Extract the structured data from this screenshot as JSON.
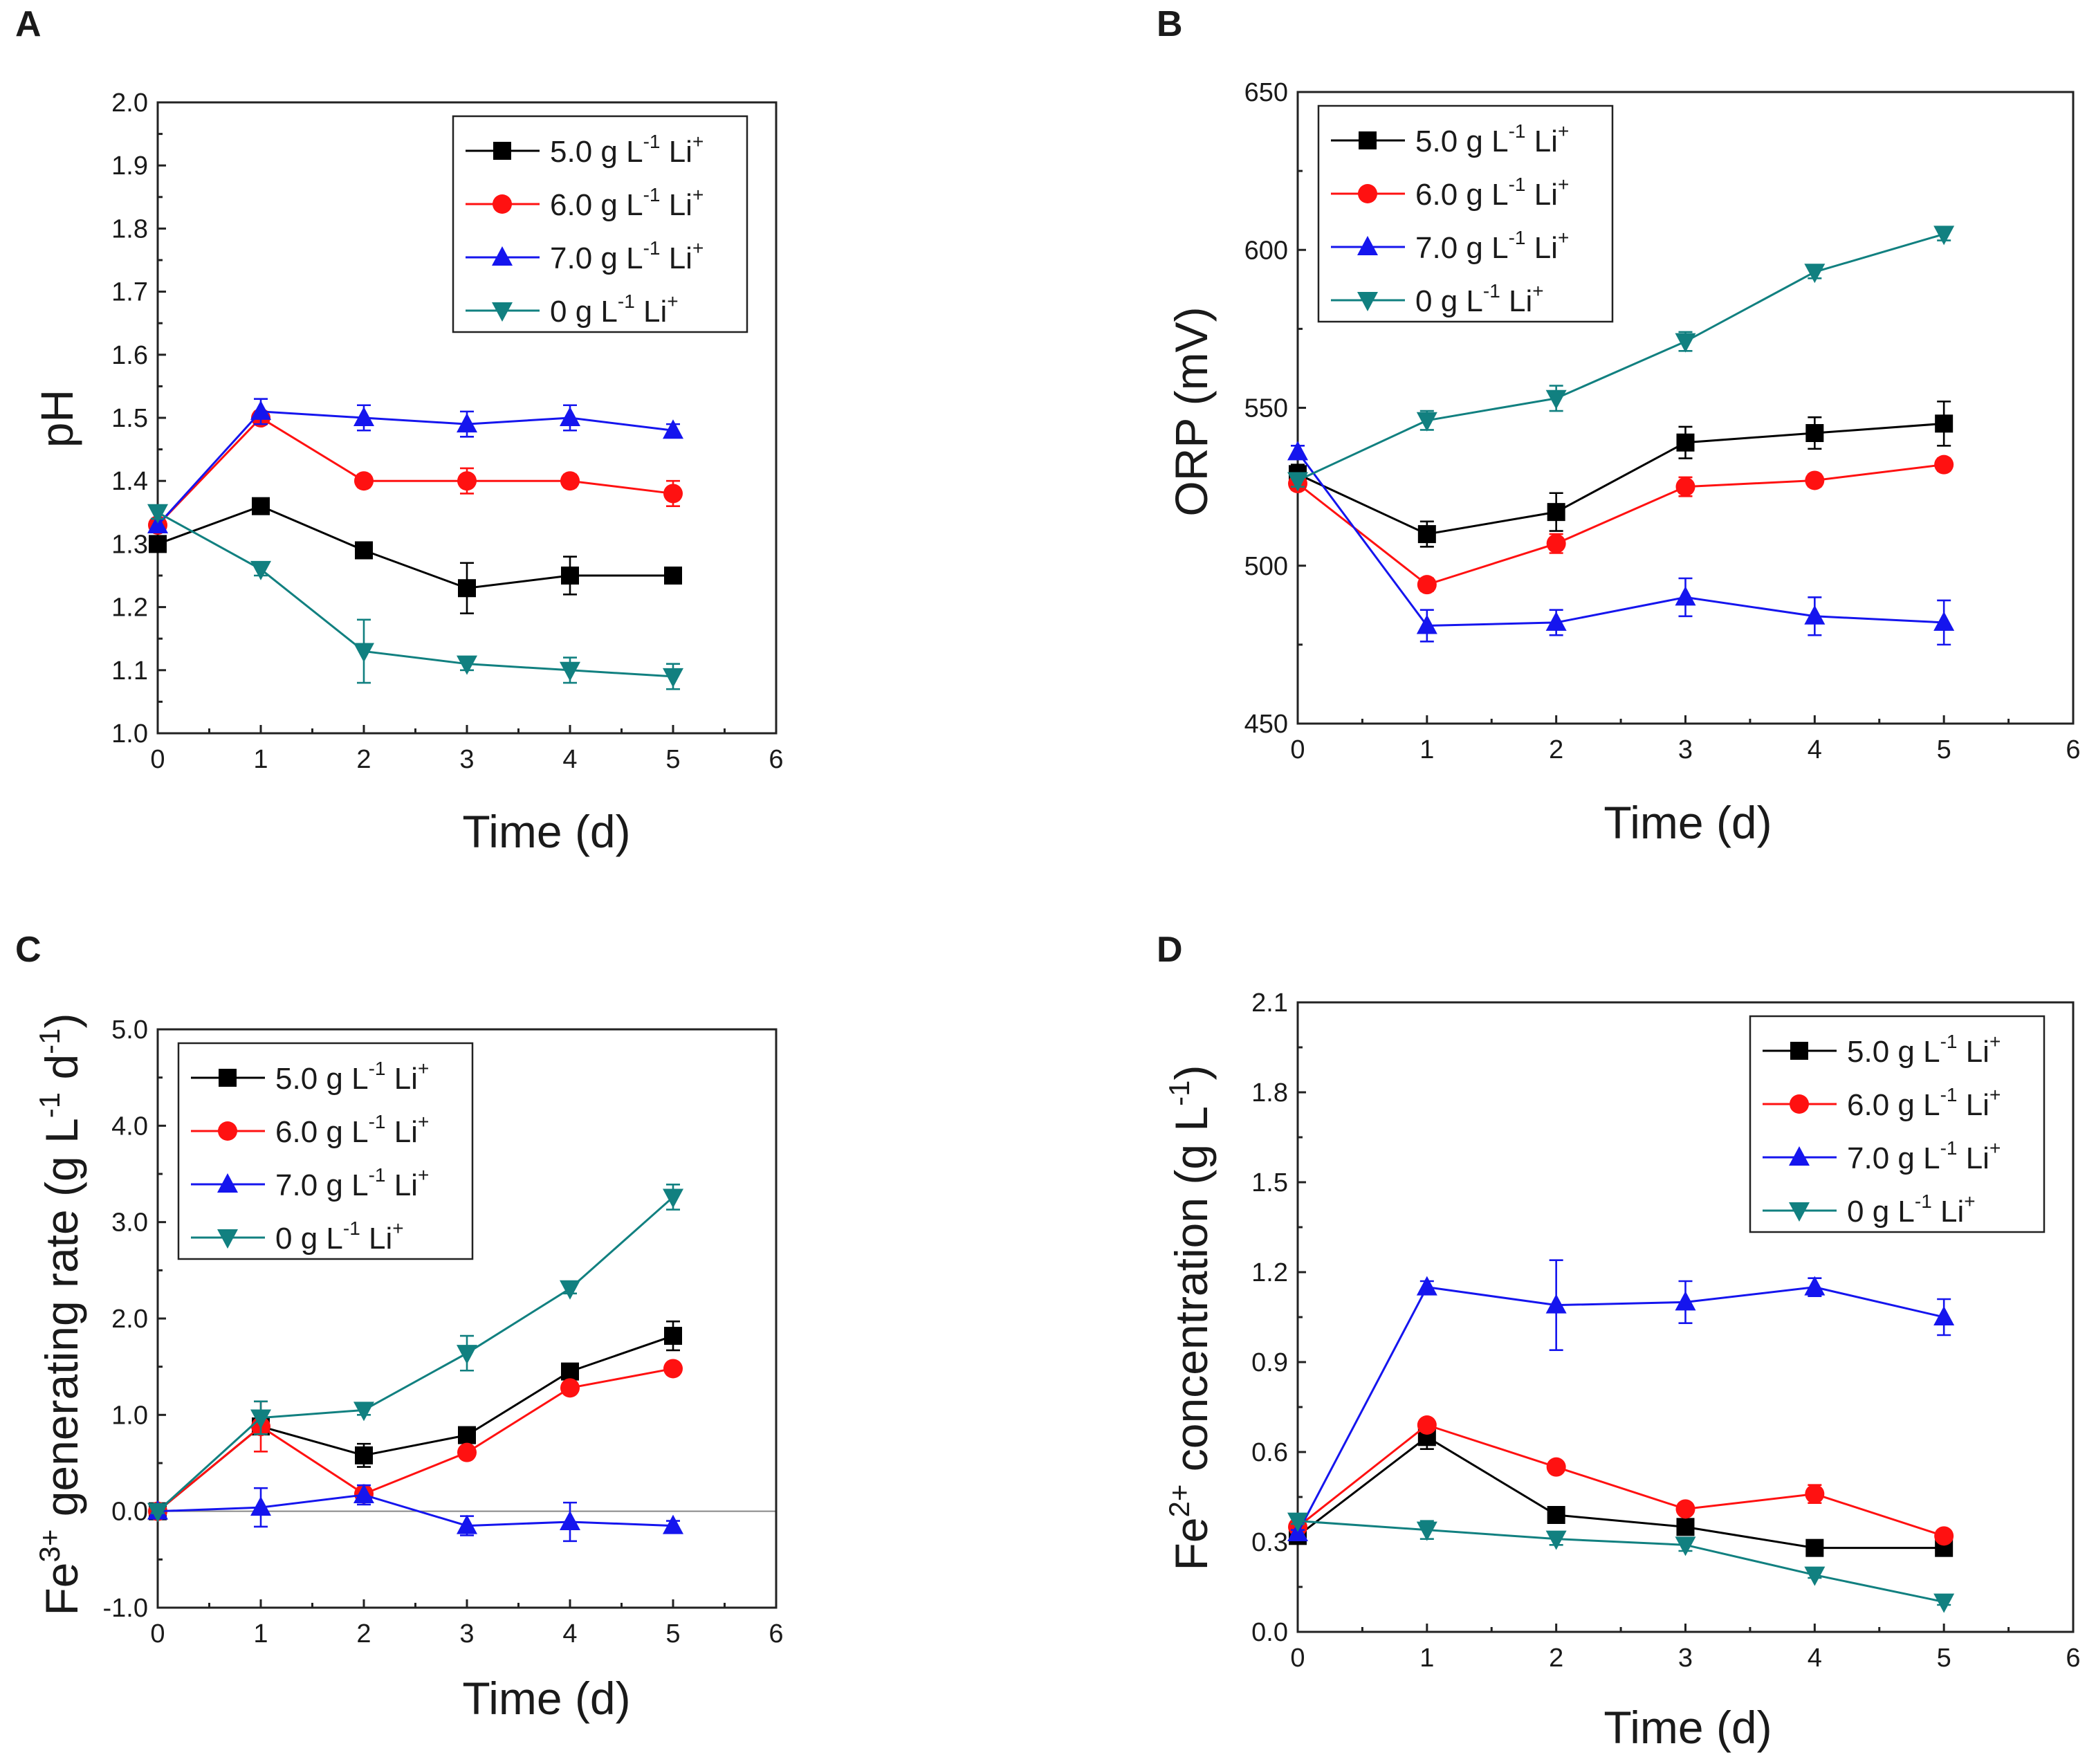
{
  "colors": {
    "li5": "#000000",
    "li6": "#ff1111",
    "li7": "#1515ee",
    "li0": "#118080"
  },
  "chart_data": [
    {
      "panel": "A",
      "type": "line",
      "title": "",
      "xlabel": "Time (d)",
      "ylabel": "pH",
      "xlim": [
        0,
        6
      ],
      "ylim": [
        1.0,
        2.0
      ],
      "xticks": [
        0,
        1,
        2,
        3,
        4,
        5,
        6
      ],
      "xtick_labels": [
        "0",
        "1",
        "2",
        "3",
        "4",
        "5",
        "6"
      ],
      "yticks": [
        1.0,
        1.1,
        1.2,
        1.3,
        1.4,
        1.5,
        1.6,
        1.7,
        1.8,
        1.9,
        2.0
      ],
      "ytick_labels": [
        "1.0",
        "1.1",
        "1.2",
        "1.3",
        "1.4",
        "1.5",
        "1.6",
        "1.7",
        "1.8",
        "1.9",
        "2.0"
      ],
      "legend_position": "top-right",
      "x": [
        0,
        1,
        2,
        3,
        4,
        5
      ],
      "series": [
        {
          "key": "li5",
          "marker": "square",
          "label_main": "5.0 g L",
          "label_exp": "-1",
          "label_tail": " Li",
          "label_sup": "+",
          "values": [
            1.3,
            1.36,
            1.29,
            1.23,
            1.25,
            1.25
          ],
          "errors": [
            0.01,
            0.01,
            0.01,
            0.04,
            0.03,
            0.01
          ]
        },
        {
          "key": "li6",
          "marker": "circle",
          "label_main": "6.0 g L",
          "label_exp": "-1",
          "label_tail": " Li",
          "label_sup": "+",
          "values": [
            1.33,
            1.5,
            1.4,
            1.4,
            1.4,
            1.38
          ],
          "errors": [
            0.01,
            0.01,
            0.01,
            0.02,
            0.01,
            0.02
          ]
        },
        {
          "key": "li7",
          "marker": "triangle-up",
          "label_main": "7.0 g L",
          "label_exp": "-1",
          "label_tail": " Li",
          "label_sup": "+",
          "values": [
            1.33,
            1.51,
            1.5,
            1.49,
            1.5,
            1.48
          ],
          "errors": [
            0.01,
            0.02,
            0.02,
            0.02,
            0.02,
            0.01
          ]
        },
        {
          "key": "li0",
          "marker": "triangle-down",
          "label_main": "0 g L",
          "label_exp": "-1",
          "label_tail": " Li",
          "label_sup": "+",
          "values": [
            1.35,
            1.26,
            1.13,
            1.11,
            1.1,
            1.09
          ],
          "errors": [
            0.01,
            0.01,
            0.05,
            0.01,
            0.02,
            0.02
          ]
        }
      ]
    },
    {
      "panel": "B",
      "type": "line",
      "title": "",
      "xlabel": "Time (d)",
      "ylabel": "ORP (mV)",
      "xlim": [
        0,
        6
      ],
      "ylim": [
        450,
        650
      ],
      "xticks": [
        0,
        1,
        2,
        3,
        4,
        5,
        6
      ],
      "xtick_labels": [
        "0",
        "1",
        "2",
        "3",
        "4",
        "5",
        "6"
      ],
      "yticks": [
        450,
        500,
        550,
        600,
        650
      ],
      "ytick_labels": [
        "450",
        "500",
        "550",
        "600",
        "650"
      ],
      "legend_position": "top-left",
      "x": [
        0,
        1,
        2,
        3,
        4,
        5
      ],
      "series": [
        {
          "key": "li5",
          "marker": "square",
          "label_main": "5.0 g L",
          "label_exp": "-1",
          "label_tail": " Li",
          "label_sup": "+",
          "values": [
            529,
            510,
            517,
            539,
            542,
            545
          ],
          "errors": [
            3,
            4,
            6,
            5,
            5,
            7
          ]
        },
        {
          "key": "li6",
          "marker": "circle",
          "label_main": "6.0 g L",
          "label_exp": "-1",
          "label_tail": " Li",
          "label_sup": "+",
          "values": [
            526,
            494,
            507,
            525,
            527,
            532
          ],
          "errors": [
            2,
            2,
            3,
            3,
            2,
            2
          ]
        },
        {
          "key": "li7",
          "marker": "triangle-up",
          "label_main": "7.0 g L",
          "label_exp": "-1",
          "label_tail": " Li",
          "label_sup": "+",
          "values": [
            536,
            481,
            482,
            490,
            484,
            482
          ],
          "errors": [
            2,
            5,
            4,
            6,
            6,
            7
          ]
        },
        {
          "key": "li0",
          "marker": "triangle-down",
          "label_main": "0 g L",
          "label_exp": "-1",
          "label_tail": " Li",
          "label_sup": "+",
          "values": [
            527,
            546,
            553,
            571,
            593,
            605
          ],
          "errors": [
            2,
            3,
            4,
            3,
            2,
            2
          ]
        }
      ]
    },
    {
      "panel": "C",
      "type": "line",
      "title": "",
      "xlabel": "Time (d)",
      "ylabel_prefix": "Fe",
      "ylabel_sup": "3+",
      "ylabel_mid": " generating rate (g L",
      "ylabel_exp1": "-1",
      "ylabel_mid2": " d",
      "ylabel_exp2": "-1",
      "ylabel_end": ")",
      "xlim": [
        0,
        6
      ],
      "ylim": [
        -1.0,
        5.0
      ],
      "xticks": [
        0,
        1,
        2,
        3,
        4,
        5,
        6
      ],
      "xtick_labels": [
        "0",
        "1",
        "2",
        "3",
        "4",
        "5",
        "6"
      ],
      "yticks": [
        -1.0,
        0.0,
        1.0,
        2.0,
        3.0,
        4.0,
        5.0
      ],
      "ytick_labels": [
        "-1.0",
        "0.0",
        "1.0",
        "2.0",
        "3.0",
        "4.0",
        "5.0"
      ],
      "reference_line": 0,
      "legend_position": "top-left",
      "x": [
        0,
        1,
        2,
        3,
        4,
        5
      ],
      "series": [
        {
          "key": "li5",
          "marker": "square",
          "label_main": "5.0 g L",
          "label_exp": "-1",
          "label_tail": " Li",
          "label_sup": "+",
          "values": [
            0.0,
            0.88,
            0.58,
            0.79,
            1.45,
            1.82
          ],
          "errors": [
            0.02,
            0.05,
            0.12,
            0.05,
            0.06,
            0.15
          ]
        },
        {
          "key": "li6",
          "marker": "circle",
          "label_main": "6.0 g L",
          "label_exp": "-1",
          "label_tail": " Li",
          "label_sup": "+",
          "values": [
            0.0,
            0.88,
            0.18,
            0.61,
            1.28,
            1.48
          ],
          "errors": [
            0.02,
            0.26,
            0.06,
            0.05,
            0.06,
            0.06
          ]
        },
        {
          "key": "li7",
          "marker": "triangle-up",
          "label_main": "7.0 g L",
          "label_exp": "-1",
          "label_tail": " Li",
          "label_sup": "+",
          "values": [
            0.0,
            0.04,
            0.17,
            -0.15,
            -0.11,
            -0.15
          ],
          "errors": [
            0.02,
            0.2,
            0.1,
            0.1,
            0.2,
            0.05
          ]
        },
        {
          "key": "li0",
          "marker": "triangle-down",
          "label_main": "0 g L",
          "label_exp": "-1",
          "label_tail": " Li",
          "label_sup": "+",
          "values": [
            0.0,
            0.97,
            1.05,
            1.64,
            2.31,
            3.26
          ],
          "errors": [
            0.02,
            0.17,
            0.05,
            0.18,
            0.05,
            0.13
          ]
        }
      ]
    },
    {
      "panel": "D",
      "type": "line",
      "title": "",
      "xlabel": "Time (d)",
      "ylabel_prefix": "Fe",
      "ylabel_sup": "2+",
      "ylabel_mid": " concentration (g L",
      "ylabel_exp1": "-1",
      "ylabel_end": ")",
      "xlim": [
        0,
        6
      ],
      "ylim": [
        0.0,
        2.1
      ],
      "xticks": [
        0,
        1,
        2,
        3,
        4,
        5,
        6
      ],
      "xtick_labels": [
        "0",
        "1",
        "2",
        "3",
        "4",
        "5",
        "6"
      ],
      "yticks": [
        0.0,
        0.3,
        0.6,
        0.9,
        1.2,
        1.5,
        1.8,
        2.1
      ],
      "ytick_labels": [
        "0.0",
        "0.3",
        "0.6",
        "0.9",
        "1.2",
        "1.5",
        "1.8",
        "2.1"
      ],
      "legend_position": "top-right",
      "x": [
        0,
        1,
        2,
        3,
        4,
        5
      ],
      "series": [
        {
          "key": "li5",
          "marker": "square",
          "label_main": "5.0 g L",
          "label_exp": "-1",
          "label_tail": " Li",
          "label_sup": "+",
          "values": [
            0.32,
            0.65,
            0.39,
            0.35,
            0.28,
            0.28
          ],
          "errors": [
            0.01,
            0.04,
            0.02,
            0.02,
            0.02,
            0.01
          ]
        },
        {
          "key": "li6",
          "marker": "circle",
          "label_main": "6.0 g L",
          "label_exp": "-1",
          "label_tail": " Li",
          "label_sup": "+",
          "values": [
            0.35,
            0.69,
            0.55,
            0.41,
            0.46,
            0.32
          ],
          "errors": [
            0.01,
            0.01,
            0.01,
            0.02,
            0.03,
            0.01
          ]
        },
        {
          "key": "li7",
          "marker": "triangle-up",
          "label_main": "7.0 g L",
          "label_exp": "-1",
          "label_tail": " Li",
          "label_sup": "+",
          "values": [
            0.33,
            1.15,
            1.09,
            1.1,
            1.15,
            1.05
          ],
          "errors": [
            0.01,
            0.02,
            0.15,
            0.07,
            0.03,
            0.06
          ]
        },
        {
          "key": "li0",
          "marker": "triangle-down",
          "label_main": "0 g L",
          "label_exp": "-1",
          "label_tail": " Li",
          "label_sup": "+",
          "values": [
            0.37,
            0.34,
            0.31,
            0.29,
            0.19,
            0.1
          ],
          "errors": [
            0.01,
            0.03,
            0.02,
            0.02,
            0.01,
            0.01
          ]
        }
      ]
    }
  ]
}
